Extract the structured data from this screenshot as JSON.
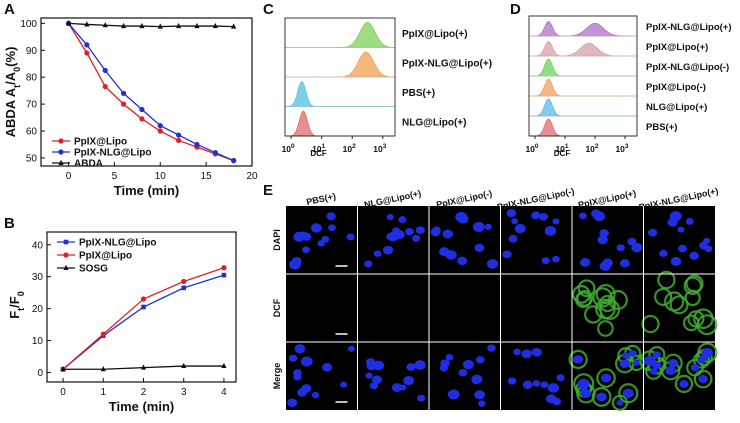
{
  "panel_letters": {
    "a": "A",
    "b": "B",
    "c": "C",
    "d": "D",
    "e": "E"
  },
  "chart_data": [
    {
      "id": "A",
      "type": "line",
      "ylabel": "ABDA  At/A0(%)",
      "ylabel_parts": {
        "prefix": "ABDA  A",
        "sub1": "t",
        "mid": "/A",
        "sub2": "0",
        "suffix": "(%)"
      },
      "xlabel": "Time (min)",
      "xlim": [
        -3,
        20
      ],
      "ylim": [
        47,
        102
      ],
      "xticks": [
        0,
        5,
        10,
        15,
        20
      ],
      "yticks": [
        50,
        60,
        70,
        80,
        90,
        100
      ],
      "series": [
        {
          "name": "PpIX@Lipo",
          "color": "#e02020",
          "marker": "circle",
          "x": [
            0,
            2,
            4,
            6,
            8,
            10,
            12,
            14,
            16,
            18
          ],
          "y": [
            100,
            89,
            76.5,
            70,
            64.5,
            60,
            56.5,
            54,
            51.5,
            49
          ]
        },
        {
          "name": "PpIX-NLG@Lipo",
          "color": "#2030d8",
          "marker": "circle",
          "x": [
            0,
            2,
            4,
            6,
            8,
            10,
            12,
            14,
            16,
            18
          ],
          "y": [
            100,
            92,
            82.5,
            74,
            68,
            62,
            58.5,
            55,
            52,
            49
          ]
        },
        {
          "name": "ABDA",
          "color": "#111111",
          "marker": "triangle",
          "x": [
            0,
            2,
            4,
            6,
            8,
            10,
            12,
            14,
            16,
            18
          ],
          "y": [
            100,
            99.6,
            99.3,
            99,
            99,
            98.8,
            99,
            99,
            99,
            98.8
          ]
        }
      ]
    },
    {
      "id": "B",
      "type": "line",
      "ylabel": "Ft/F0",
      "ylabel_parts": {
        "prefix": "F",
        "sub1": "t",
        "mid": "/F",
        "sub2": "0"
      },
      "xlabel": "Time (min)",
      "xlim": [
        -0.4,
        4.3
      ],
      "ylim": [
        -3,
        44
      ],
      "xticks": [
        0,
        1,
        2,
        3,
        4
      ],
      "yticks": [
        0,
        10,
        20,
        30,
        40
      ],
      "series": [
        {
          "name": "PpIX-NLG@Lipo",
          "color": "#2030d8",
          "marker": "square",
          "x": [
            0,
            1,
            2,
            3,
            4
          ],
          "y": [
            1,
            11.5,
            20.5,
            26.5,
            30.5
          ]
        },
        {
          "name": "PpIX@Lipo",
          "color": "#e02020",
          "marker": "circle",
          "x": [
            0,
            1,
            2,
            3,
            4
          ],
          "y": [
            1,
            12,
            23,
            28.5,
            32.8
          ]
        },
        {
          "name": "SOSG",
          "color": "#111111",
          "marker": "triangle",
          "x": [
            0,
            1,
            2,
            3,
            4
          ],
          "y": [
            1,
            1,
            1.5,
            2,
            2
          ]
        }
      ]
    },
    {
      "id": "C",
      "type": "histogram-overlay",
      "xlabel": "DCF",
      "xtick_labels": [
        "10",
        "10",
        "10",
        "10"
      ],
      "xtick_exps": [
        "0",
        "1",
        "2",
        "3"
      ],
      "rows": [
        {
          "label": "PpIX@Lipo(+)",
          "color": "#7fcf5a",
          "peak": 2.5
        },
        {
          "label": "PpIX-NLG@Lipo(+)",
          "color": "#f0a050",
          "peak": 2.45
        },
        {
          "label": "PBS(+)",
          "color": "#4fc3e0",
          "peak": 0.35
        },
        {
          "label": "NLG@Lipo(+)",
          "color": "#e06a6a",
          "peak": 0.4
        }
      ]
    },
    {
      "id": "D",
      "type": "histogram-overlay",
      "xlabel": "DCF",
      "xtick_labels": [
        "10",
        "10",
        "10",
        "10"
      ],
      "xtick_exps": [
        "0",
        "1",
        "2",
        "3"
      ],
      "rows": [
        {
          "label": "PpIX-NLG@Lipo(+)",
          "color": "#b070c8",
          "peak": 0.45,
          "peak2": 2.0
        },
        {
          "label": "PpIX@Lipo(+)",
          "color": "#d6a0a8",
          "peak": 0.45,
          "peak2": 1.8
        },
        {
          "label": "PpIX-NLG@Lipo(-)",
          "color": "#6fd060",
          "peak": 0.45
        },
        {
          "label": "PpIX@Lipo(-)",
          "color": "#f0a060",
          "peak": 0.45
        },
        {
          "label": "NLG@Lipo(+)",
          "color": "#5ab8e8",
          "peak": 0.45
        },
        {
          "label": "PBS(+)",
          "color": "#e06a70",
          "peak": 0.45
        }
      ]
    }
  ],
  "panel_e": {
    "columns": [
      "PBS(+)",
      "NLG@Lipo(+)",
      "PpIX@Lipo(-)",
      "PpIX-NLG@Lipo(-)",
      "PpIX@Lipo(+)",
      "PpIX-NLG@Lipo(+)"
    ],
    "rows": [
      "DAPI",
      "DCF",
      "Merge"
    ],
    "green_columns": [
      4,
      5
    ]
  }
}
